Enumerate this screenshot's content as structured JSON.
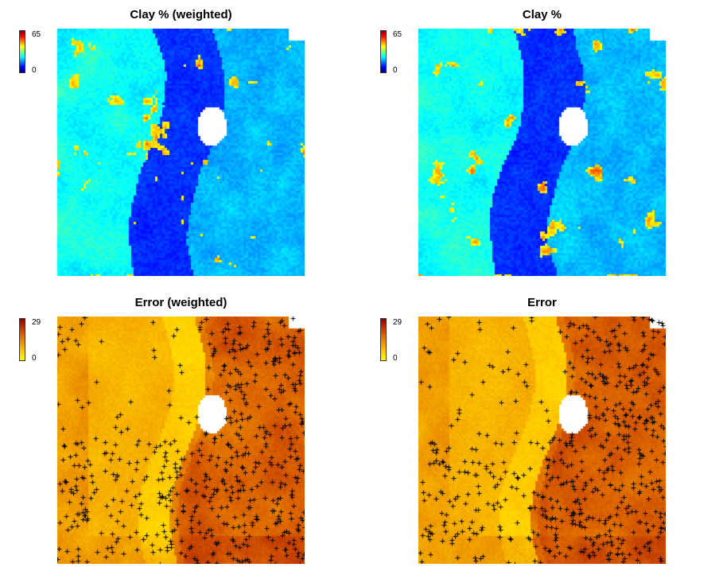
{
  "chart_data": [
    {
      "type": "heatmap",
      "title": "Clay % (weighted)",
      "legend": {
        "min_label": "0",
        "max_label": "65",
        "min": 0,
        "max": 65,
        "palette": "rainbow-blue-to-red"
      },
      "points_overlay": false
    },
    {
      "type": "heatmap",
      "title": "Clay %",
      "legend": {
        "min_label": "0",
        "max_label": "65",
        "min": 0,
        "max": 65,
        "palette": "rainbow-blue-to-red"
      },
      "points_overlay": false
    },
    {
      "type": "heatmap",
      "title": "Error (weighted)",
      "legend": {
        "min_label": "0",
        "max_label": "29",
        "min": 0,
        "max": 29,
        "palette": "yellow-to-red"
      },
      "points_overlay": true,
      "point_symbol": "+"
    },
    {
      "type": "heatmap",
      "title": "Error",
      "legend": {
        "min_label": "0",
        "max_label": "29",
        "min": 0,
        "max": 29,
        "palette": "yellow-to-red"
      },
      "points_overlay": true,
      "point_symbol": "+"
    }
  ]
}
